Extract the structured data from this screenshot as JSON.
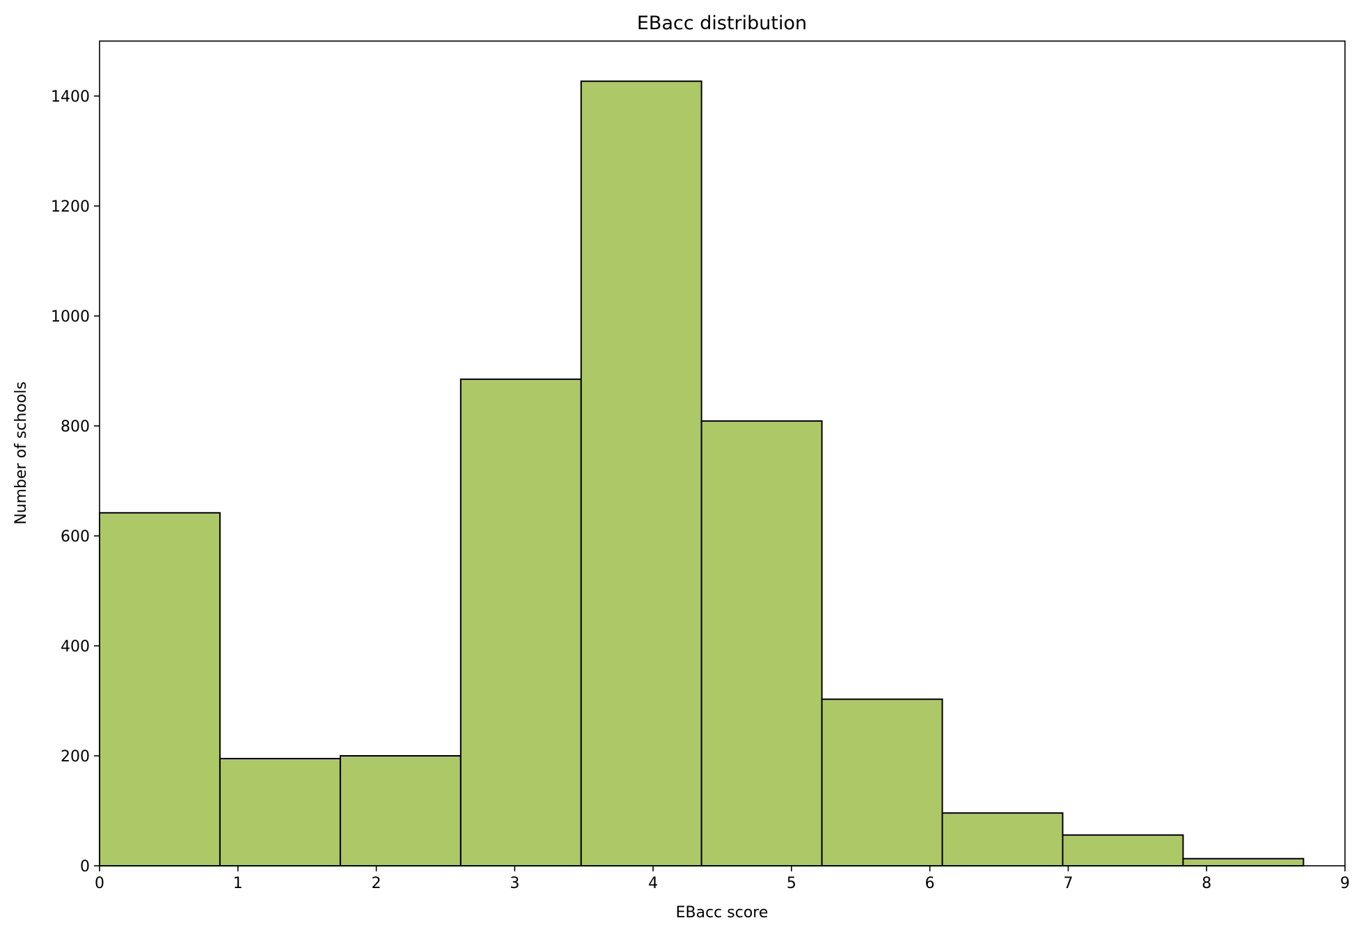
{
  "chart_data": {
    "type": "bar",
    "title": "EBacc distribution",
    "xlabel": "EBacc score",
    "ylabel": "Number of schools",
    "xlim": [
      0,
      9
    ],
    "ylim": [
      0,
      1500
    ],
    "bin_edges": [
      0,
      0.87,
      1.74,
      2.61,
      3.48,
      4.35,
      5.22,
      6.09,
      6.96,
      7.83,
      8.7
    ],
    "values": [
      642,
      195,
      200,
      885,
      1427,
      809,
      303,
      96,
      56,
      13
    ],
    "x_ticks": [
      "0",
      "1",
      "2",
      "3",
      "4",
      "5",
      "6",
      "7",
      "8",
      "9"
    ],
    "y_ticks": [
      "0",
      "200",
      "400",
      "600",
      "800",
      "1000",
      "1200",
      "1400"
    ],
    "bar_color": "#adc866",
    "edge_color": "#000000",
    "grid": false,
    "legend": "none"
  }
}
